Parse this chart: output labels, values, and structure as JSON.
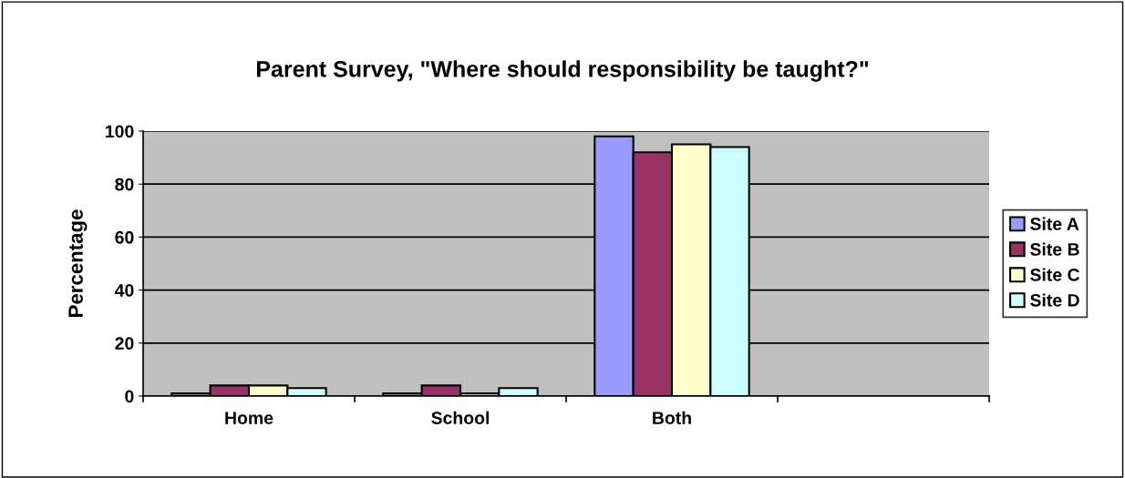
{
  "chart_data": {
    "type": "bar",
    "title": "Parent Survey, \"Where should responsibility be taught?\"",
    "ylabel": "Percentage",
    "categories": [
      "Home",
      "School",
      "Both",
      null
    ],
    "series": [
      {
        "name": "Site A",
        "color": "#9999ff",
        "values": [
          1,
          1,
          98,
          null
        ]
      },
      {
        "name": "Site B",
        "color": "#993366",
        "values": [
          4,
          4,
          92,
          null
        ]
      },
      {
        "name": "Site C",
        "color": "#ffffcc",
        "values": [
          4,
          1,
          95,
          null
        ]
      },
      {
        "name": "Site D",
        "color": "#ccffff",
        "values": [
          3,
          3,
          94,
          null
        ]
      }
    ],
    "ylim": [
      0,
      100
    ],
    "yticks": [
      0,
      20,
      40,
      60,
      80,
      100
    ],
    "grid": "y",
    "legend": "right"
  }
}
